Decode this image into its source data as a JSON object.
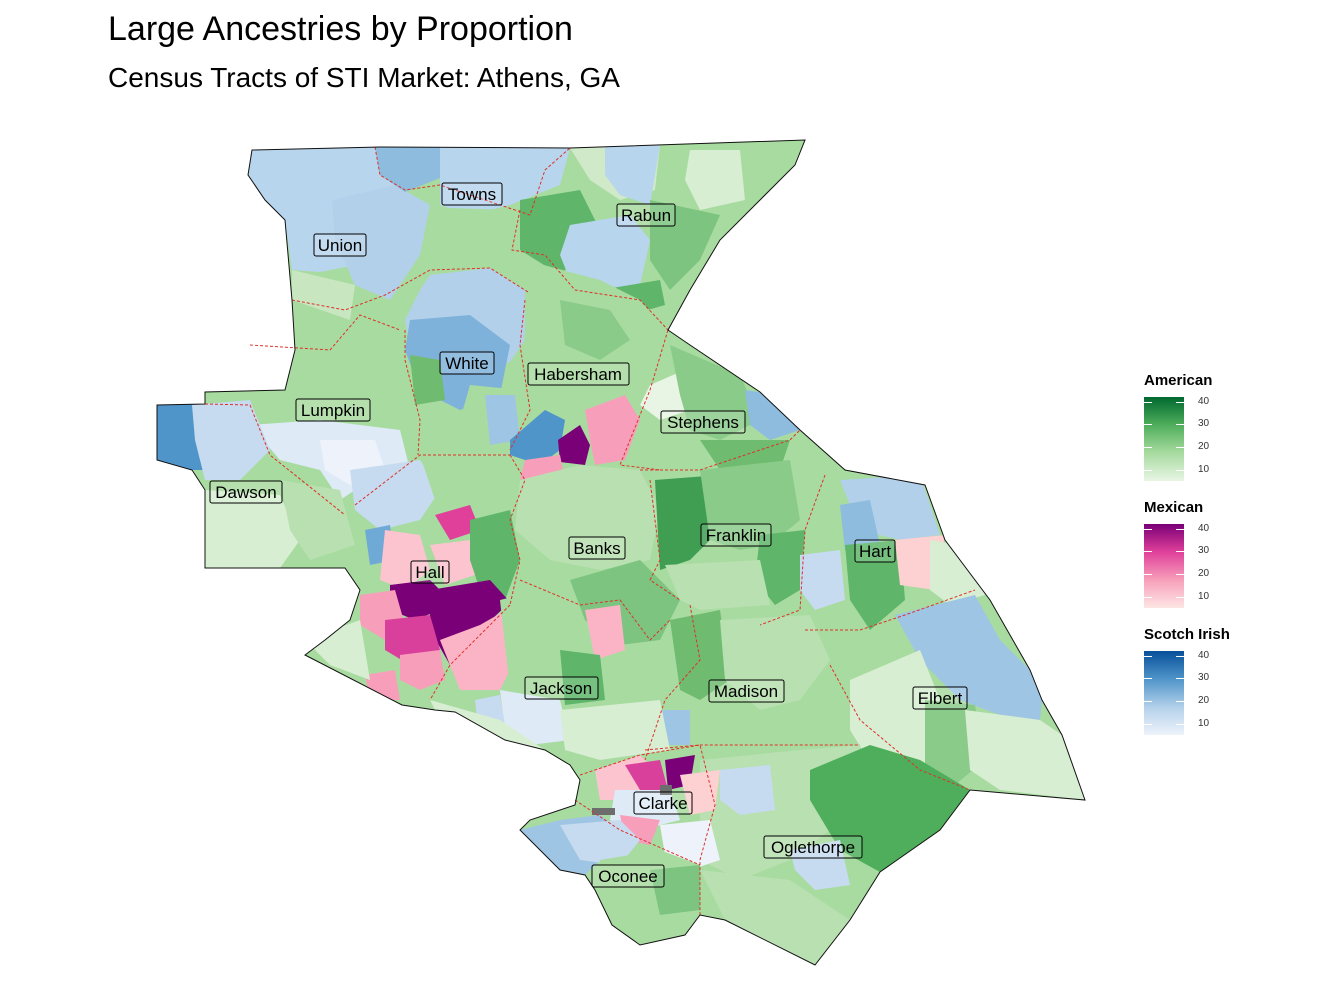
{
  "title": "Large Ancestries by Proportion",
  "subtitle": "Census Tracts of STI Market: Athens, GA",
  "map": {
    "counties": [
      {
        "name": "Towns",
        "ancestry": "American"
      },
      {
        "name": "Rabun",
        "ancestry": "American"
      },
      {
        "name": "Union",
        "ancestry": "American"
      },
      {
        "name": "White",
        "ancestry": "Scotch Irish"
      },
      {
        "name": "Habersham",
        "ancestry": "American"
      },
      {
        "name": "Lumpkin",
        "ancestry": "American"
      },
      {
        "name": "Stephens",
        "ancestry": "American"
      },
      {
        "name": "Dawson",
        "ancestry": "American"
      },
      {
        "name": "Banks",
        "ancestry": "American"
      },
      {
        "name": "Franklin",
        "ancestry": "American"
      },
      {
        "name": "Hart",
        "ancestry": "American"
      },
      {
        "name": "Hall",
        "ancestry": "Mexican"
      },
      {
        "name": "Jackson",
        "ancestry": "American"
      },
      {
        "name": "Madison",
        "ancestry": "American"
      },
      {
        "name": "Elbert",
        "ancestry": "American"
      },
      {
        "name": "Clarke",
        "ancestry": "Mexican"
      },
      {
        "name": "Oglethorpe",
        "ancestry": "American"
      },
      {
        "name": "Oconee",
        "ancestry": "Scotch Irish"
      }
    ]
  },
  "legends": [
    {
      "title": "American",
      "min": 5,
      "max": 42,
      "ticks": [
        40,
        30,
        20,
        10
      ],
      "colors": [
        "#e8f5e4",
        "#a8dba0",
        "#4fae5c",
        "#00692f"
      ]
    },
    {
      "title": "Mexican",
      "min": 5,
      "max": 42,
      "ticks": [
        40,
        30,
        20,
        10
      ],
      "colors": [
        "#fde6e4",
        "#f79fba",
        "#e0409a",
        "#7a0077"
      ]
    },
    {
      "title": "Scotch Irish",
      "min": 5,
      "max": 42,
      "ticks": [
        40,
        30,
        20,
        10
      ],
      "colors": [
        "#eef3fb",
        "#b3d0ea",
        "#4f95c9",
        "#08509a"
      ]
    }
  ]
}
